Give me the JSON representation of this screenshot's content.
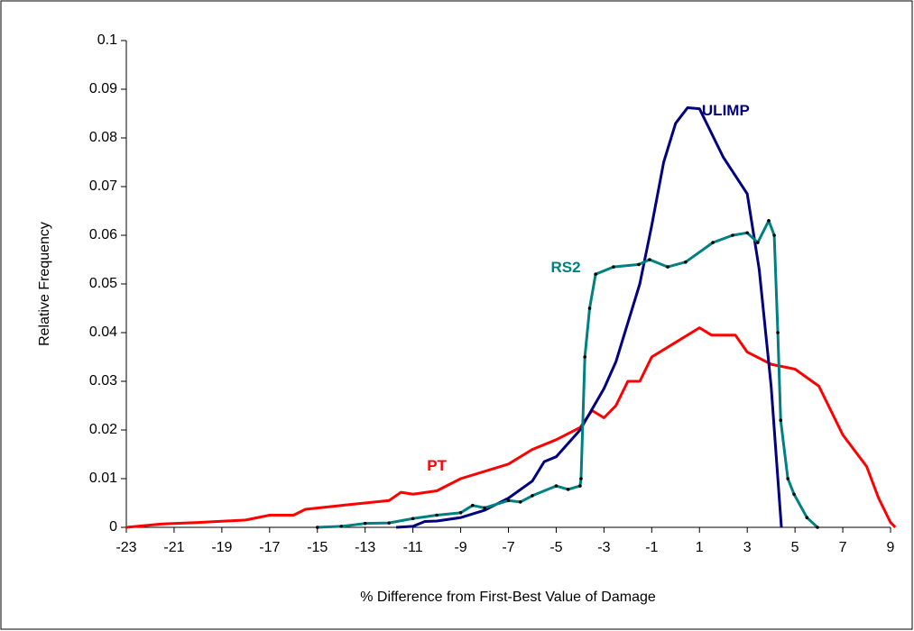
{
  "chart_data": {
    "type": "line",
    "x_label": "% Difference from First-Best Value of Damage",
    "y_label": "Relative Frequency",
    "xlim": [
      -23,
      9
    ],
    "xticks": [
      -23,
      -21,
      -19,
      -17,
      -15,
      -13,
      -11,
      -9,
      -7,
      -5,
      -3,
      -1,
      1,
      3,
      5,
      7,
      9
    ],
    "ylim": [
      0,
      0.1
    ],
    "yticks": [
      0,
      0.01,
      0.02,
      0.03,
      0.04,
      0.05,
      0.06,
      0.07,
      0.08,
      0.09,
      0.1
    ],
    "grid": false,
    "series": [
      {
        "name": "PT",
        "color": "#ff0000",
        "markers": false,
        "x": [
          -23,
          -21.5,
          -20,
          -18,
          -17,
          -16,
          -15.5,
          -14,
          -13,
          -12,
          -11.5,
          -11,
          -10,
          -9,
          -8,
          -7,
          -6,
          -5,
          -4,
          -3.5,
          -3,
          -2.5,
          -2,
          -1.5,
          -1,
          0,
          1,
          1.5,
          2,
          2.5,
          3,
          4,
          5,
          6,
          7,
          8,
          8.5,
          9,
          9.2
        ],
        "values": [
          0,
          0.0007,
          0.001,
          0.0015,
          0.0025,
          0.0025,
          0.0037,
          0.0045,
          0.005,
          0.0055,
          0.0072,
          0.0068,
          0.0075,
          0.01,
          0.0115,
          0.013,
          0.016,
          0.018,
          0.0205,
          0.024,
          0.0225,
          0.025,
          0.03,
          0.03,
          0.035,
          0.038,
          0.041,
          0.0395,
          0.0395,
          0.0395,
          0.036,
          0.0335,
          0.0325,
          0.029,
          0.019,
          0.0125,
          0.006,
          0.001,
          0
        ]
      },
      {
        "name": "ULIMP",
        "color": "#000080",
        "markers": false,
        "x": [
          -11.7,
          -11,
          -10.5,
          -10,
          -9,
          -8,
          -7,
          -6,
          -5.5,
          -5,
          -4,
          -3,
          -2.5,
          -2,
          -1.5,
          -1,
          -0.5,
          0,
          0.5,
          1,
          1.5,
          2,
          3,
          3.5,
          4,
          4.43
        ],
        "values": [
          0,
          0.0002,
          0.0012,
          0.0013,
          0.002,
          0.0035,
          0.006,
          0.0095,
          0.0135,
          0.0145,
          0.02,
          0.0285,
          0.034,
          0.042,
          0.05,
          0.062,
          0.075,
          0.083,
          0.0862,
          0.086,
          0.081,
          0.076,
          0.0685,
          0.053,
          0.029,
          0
        ]
      },
      {
        "name": "RS2",
        "color": "#008080",
        "markers": true,
        "x": [
          -15,
          -14,
          -13,
          -12,
          -11,
          -10,
          -9,
          -8.5,
          -8,
          -7,
          -6.5,
          -6,
          -5,
          -4.5,
          -4,
          -3.96,
          -3.8,
          -3.6,
          -3.35,
          -2.6,
          -1.54,
          -1.09,
          -0.33,
          0.42,
          1.56,
          2.39,
          3,
          3.44,
          3.9,
          4.13,
          4.28,
          4.4,
          4.7,
          4.96,
          5.5,
          5.94
        ],
        "values": [
          0,
          0.0002,
          0.0008,
          0.0009,
          0.0018,
          0.0025,
          0.003,
          0.0045,
          0.004,
          0.0055,
          0.0052,
          0.0065,
          0.0085,
          0.0078,
          0.0085,
          0.01,
          0.035,
          0.045,
          0.052,
          0.0535,
          0.054,
          0.055,
          0.0535,
          0.0545,
          0.0585,
          0.06,
          0.0605,
          0.0585,
          0.063,
          0.06,
          0.04,
          0.022,
          0.01,
          0.0068,
          0.002,
          0
        ]
      }
    ]
  }
}
